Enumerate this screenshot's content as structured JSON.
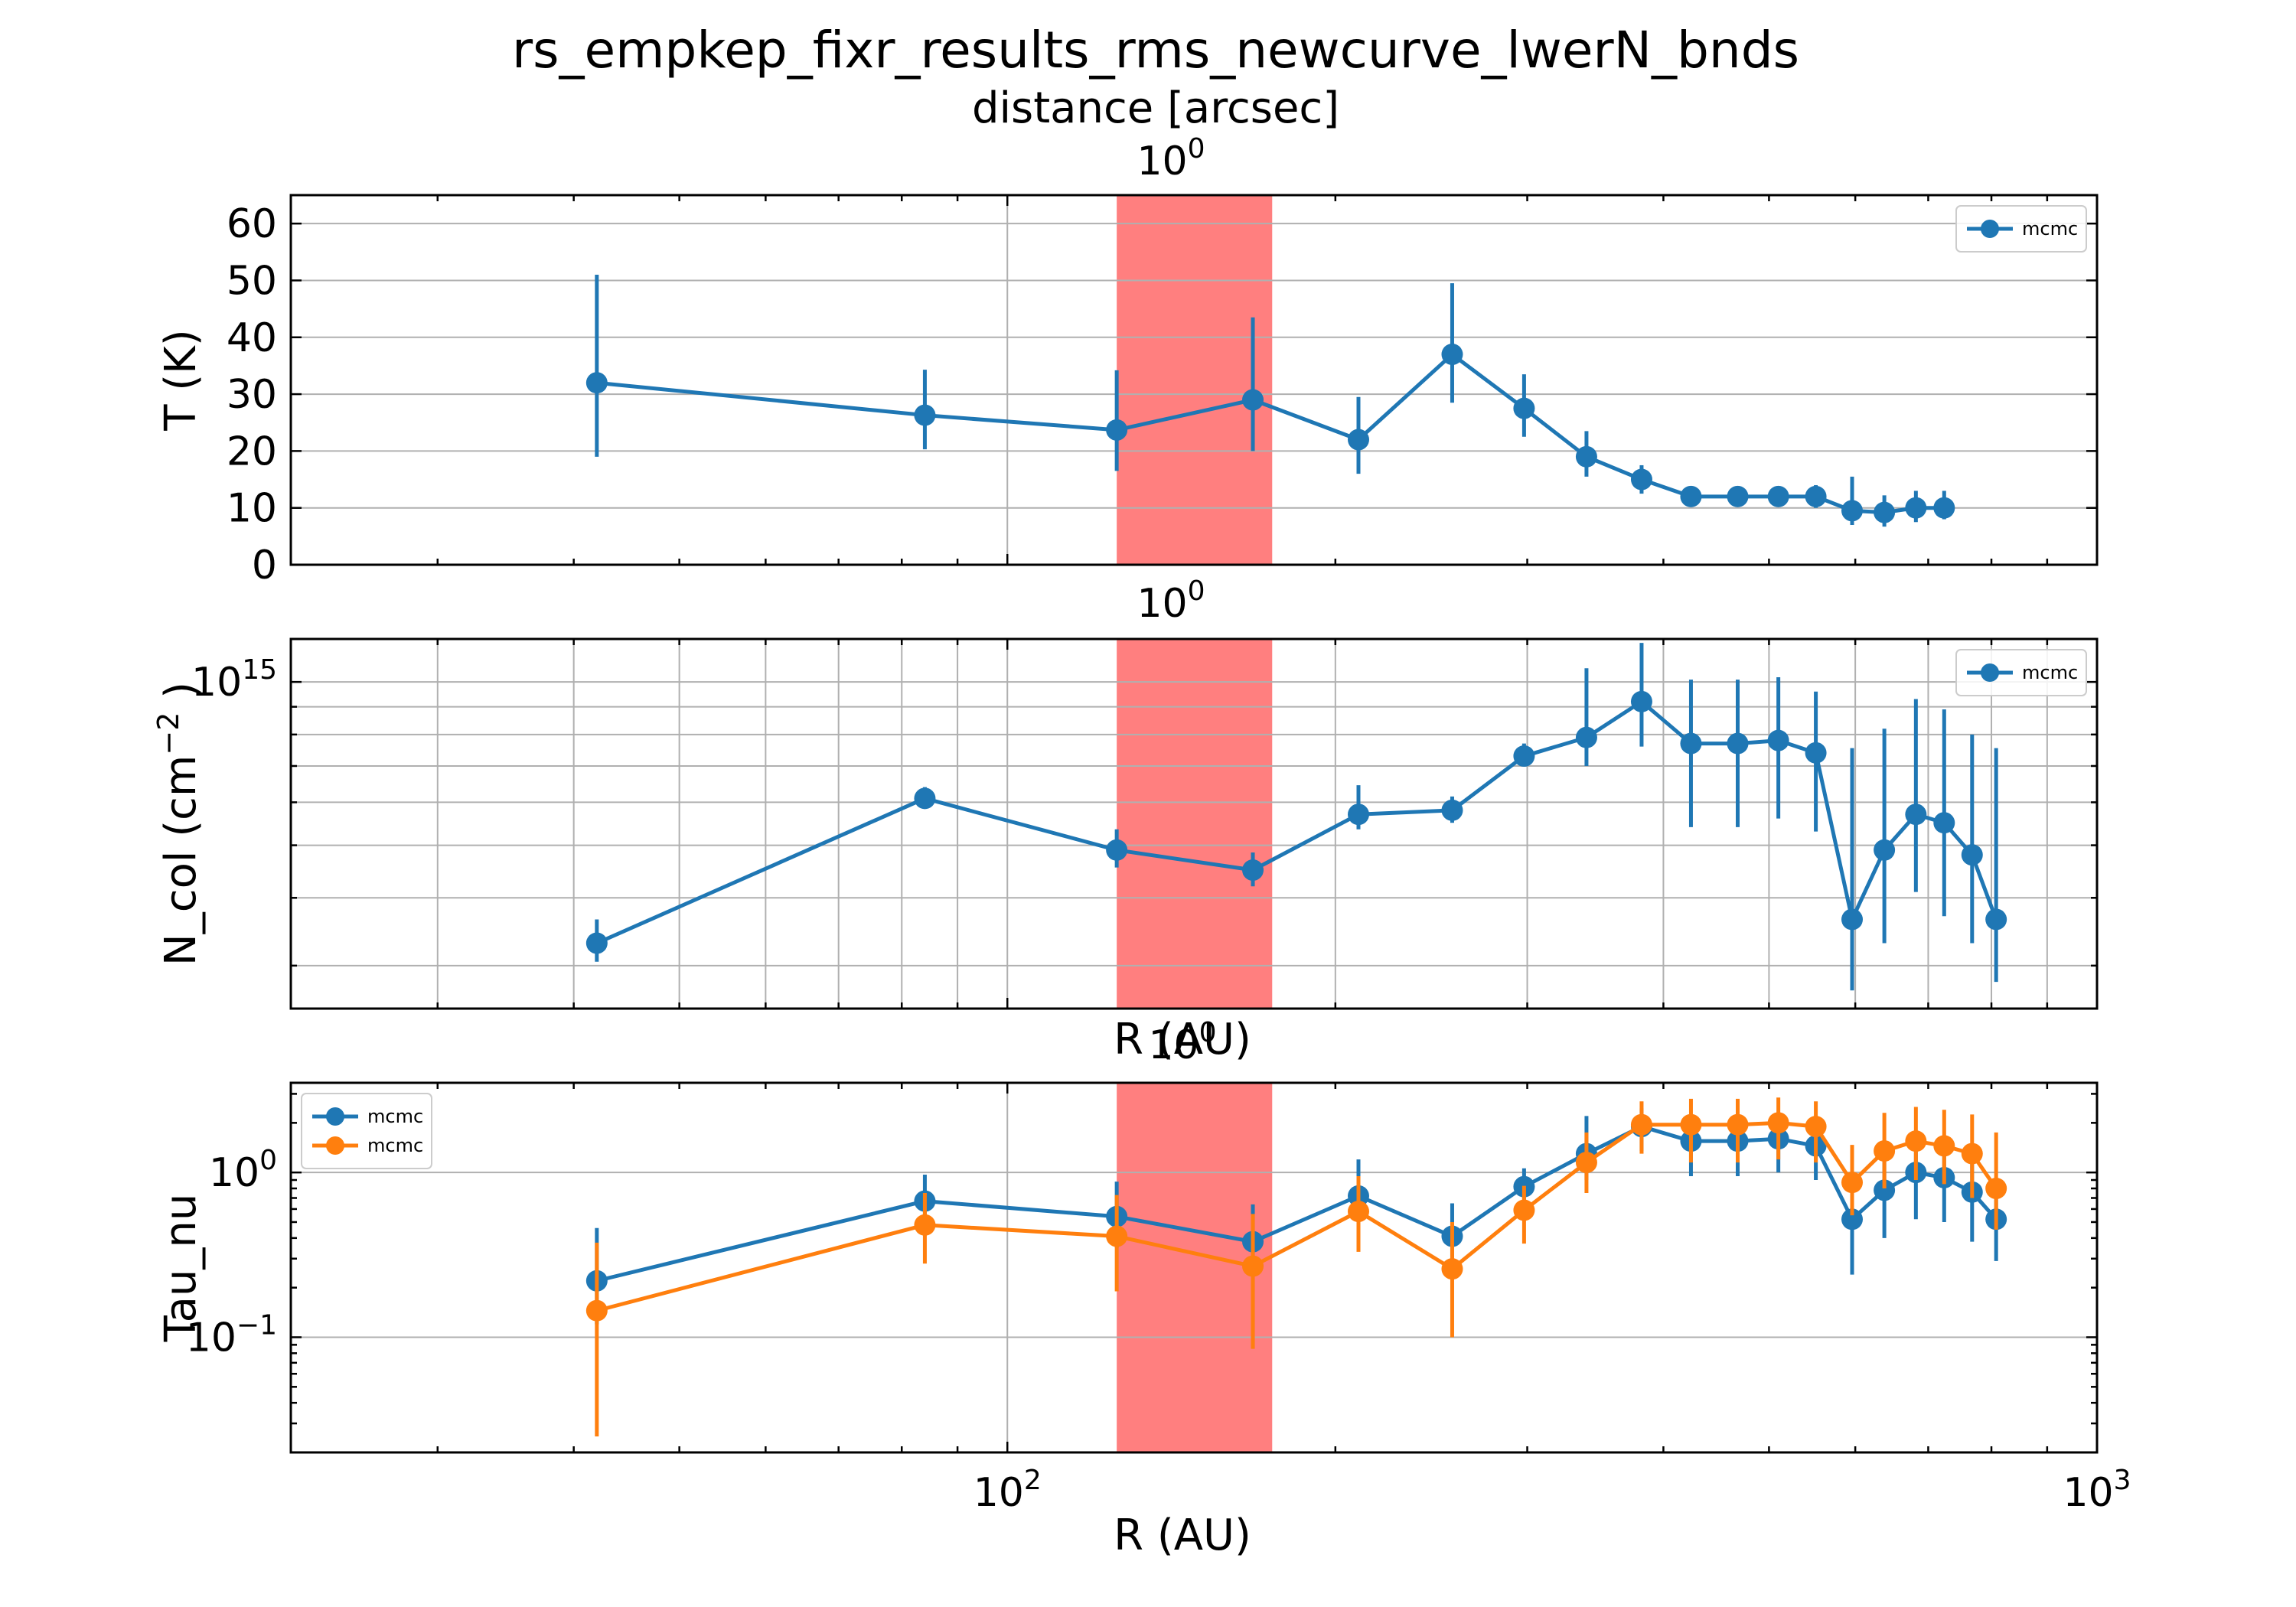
{
  "figure": {
    "title": "rs_empkep_fixr_results_rms_newcurve_lwerN_bnds",
    "top_axis_label": "distance [arcsec]",
    "top_axis_tick": "10",
    "top_axis_tick_exp": "0",
    "xlabel": "R (AU)",
    "mid_xlabel": "R (AU)"
  },
  "colors": {
    "series1": "#1f77b4",
    "series2": "#ff7f0e",
    "band": "#ff7f7f",
    "grid": "#b0b0b0"
  },
  "chart_data": [
    {
      "type": "line",
      "subtype": "errorbar",
      "ylabel": "T (K)",
      "xscale": "log",
      "yscale": "linear",
      "xlim": [
        22,
        1000
      ],
      "ylim": [
        0,
        65
      ],
      "yticks": [
        0,
        10,
        20,
        30,
        40,
        50,
        60
      ],
      "grid": true,
      "legend_loc": "upper right",
      "shaded_band": [
        126,
        175
      ],
      "series": [
        {
          "name": "mcmc",
          "x": [
            42,
            84,
            126,
            168,
            210,
            256,
            298,
            340,
            382,
            424,
            468,
            510,
            552,
            596,
            638,
            682,
            724
          ],
          "y": [
            32,
            26.3,
            23.7,
            29,
            22,
            37,
            27.5,
            19,
            15,
            12,
            12,
            12,
            12,
            9.5,
            9.2,
            10,
            10
          ],
          "err_low": [
            13,
            6,
            7.2,
            9,
            6,
            8.5,
            5,
            3.5,
            2.5,
            1.5,
            1.5,
            1.5,
            2,
            2.5,
            2.5,
            2.5,
            2
          ],
          "err_high": [
            19,
            8,
            10.5,
            14.5,
            7.5,
            12.5,
            6,
            4.5,
            2.5,
            1.5,
            1.5,
            1.5,
            2,
            6,
            3,
            3,
            3
          ]
        }
      ]
    },
    {
      "type": "line",
      "subtype": "errorbar",
      "ylabel": "N_col (cm",
      "ylabel_exp": "−2",
      "ylabel_end": " )",
      "xscale": "log",
      "yscale": "log",
      "xlim": [
        22,
        1000
      ],
      "ylim": [
        250000000000000.0,
        1200000000000000.0
      ],
      "ytick_label": "10",
      "ytick_label_exp": "15",
      "ytick_value": 1000000000000000.0,
      "grid": true,
      "legend_loc": "upper right",
      "shaded_band": [
        126,
        175
      ],
      "series": [
        {
          "name": "mcmc",
          "x": [
            42,
            84,
            126,
            168,
            210,
            256,
            298,
            340,
            382,
            424,
            468,
            510,
            552,
            596,
            638,
            682,
            724,
            768,
            808
          ],
          "y": [
            330000000000000.0,
            610000000000000.0,
            490000000000000.0,
            450000000000000.0,
            570000000000000.0,
            580000000000000.0,
            730000000000000.0,
            790000000000000.0,
            920000000000000.0,
            770000000000000.0,
            770000000000000.0,
            780000000000000.0,
            740000000000000.0,
            365000000000000.0,
            490000000000000.0,
            570000000000000.0,
            550000000000000.0,
            480000000000000.0,
            365000000000000.0
          ],
          "err_low": [
            25000000000000.0,
            25000000000000.0,
            35000000000000.0,
            30000000000000.0,
            35000000000000.0,
            30000000000000.0,
            30000000000000.0,
            90000000000000.0,
            160000000000000.0,
            230000000000000.0,
            230000000000000.0,
            220000000000000.0,
            210000000000000.0,
            95000000000000.0,
            160000000000000.0,
            160000000000000.0,
            180000000000000.0,
            150000000000000.0,
            85000000000000.0
          ],
          "err_high": [
            35000000000000.0,
            30000000000000.0,
            45000000000000.0,
            35000000000000.0,
            75000000000000.0,
            35000000000000.0,
            40000000000000.0,
            270000000000000.0,
            260000000000000.0,
            240000000000000.0,
            240000000000000.0,
            240000000000000.0,
            220000000000000.0,
            390000000000000.0,
            330000000000000.0,
            360000000000000.0,
            340000000000000.0,
            320000000000000.0,
            390000000000000.0
          ]
        }
      ]
    },
    {
      "type": "line",
      "subtype": "errorbar",
      "ylabel": "Tau_nu",
      "xscale": "log",
      "yscale": "log",
      "xlim": [
        22,
        1000
      ],
      "ylim": [
        0.02,
        3.5
      ],
      "yticks": [
        0.1,
        1
      ],
      "ytick_labels": [
        [
          "10",
          "−1"
        ],
        [
          "10",
          "0"
        ]
      ],
      "xticks": [
        100,
        1000
      ],
      "xtick_labels": [
        [
          "10",
          "2"
        ],
        [
          "10",
          "3"
        ]
      ],
      "grid": true,
      "legend_loc": "upper left",
      "shaded_band": [
        126,
        175
      ],
      "series": [
        {
          "name": "mcmc",
          "color": "#1f77b4",
          "x": [
            42,
            84,
            126,
            168,
            210,
            256,
            298,
            340,
            382,
            424,
            468,
            510,
            552,
            596,
            638,
            682,
            724,
            768,
            808
          ],
          "y": [
            0.22,
            0.67,
            0.54,
            0.38,
            0.72,
            0.41,
            0.82,
            1.3,
            1.9,
            1.55,
            1.55,
            1.6,
            1.45,
            0.52,
            0.78,
            1.0,
            0.93,
            0.76,
            0.52
          ],
          "err_low": [
            0.1,
            0.22,
            0.19,
            0.11,
            0.24,
            0.14,
            0.2,
            0.4,
            0.55,
            0.6,
            0.6,
            0.6,
            0.55,
            0.28,
            0.38,
            0.48,
            0.43,
            0.38,
            0.23
          ],
          "err_high": [
            0.24,
            0.3,
            0.34,
            0.26,
            0.48,
            0.24,
            0.24,
            0.9,
            0.55,
            0.7,
            0.7,
            0.7,
            0.65,
            0.33,
            0.52,
            0.6,
            0.57,
            0.54,
            0.38
          ]
        },
        {
          "name": "mcmc",
          "color": "#ff7f0e",
          "x": [
            42,
            84,
            126,
            168,
            210,
            256,
            298,
            340,
            382,
            424,
            468,
            510,
            552,
            596,
            638,
            682,
            724,
            768,
            808
          ],
          "y": [
            0.145,
            0.48,
            0.41,
            0.27,
            0.58,
            0.26,
            0.59,
            1.15,
            1.95,
            1.95,
            1.95,
            2.0,
            1.9,
            0.87,
            1.35,
            1.55,
            1.45,
            1.3,
            0.8
          ],
          "err_low": [
            0.12,
            0.2,
            0.22,
            0.185,
            0.25,
            0.16,
            0.22,
            0.4,
            0.65,
            0.8,
            0.8,
            0.8,
            0.75,
            0.32,
            0.55,
            0.65,
            0.6,
            0.6,
            0.35
          ],
          "err_high": [
            0.23,
            0.27,
            0.32,
            0.29,
            0.37,
            0.24,
            0.24,
            0.6,
            0.75,
            0.85,
            0.85,
            0.85,
            0.8,
            0.6,
            0.95,
            0.95,
            0.95,
            0.95,
            0.95
          ]
        }
      ]
    }
  ]
}
